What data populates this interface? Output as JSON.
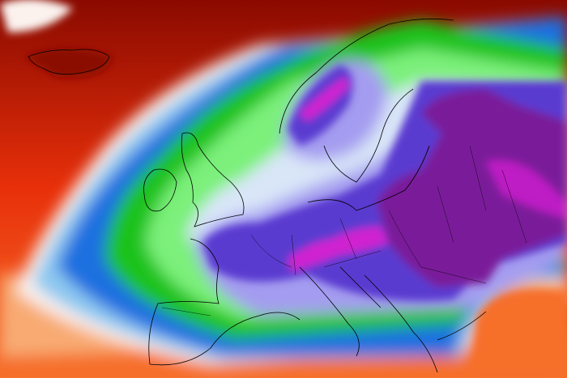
{
  "map": {
    "type": "temperature-field",
    "region": "Europe",
    "palette": {
      "warm_dark": "#8a0a00",
      "warm": "#e8300a",
      "orange": "#f6702a",
      "light_orange": "#f8b07a",
      "white": "#fbf2ee",
      "light_blue": "#8cc8f0",
      "blue": "#1e6fe0",
      "green": "#1fc21f",
      "light_green": "#7cf07a",
      "pale": "#d9e6f8",
      "lavender": "#a49cf0",
      "violet": "#5a3ad0",
      "purple": "#7a1a9a",
      "magenta": "#d020d0"
    },
    "coastlines": true,
    "borders": true
  }
}
